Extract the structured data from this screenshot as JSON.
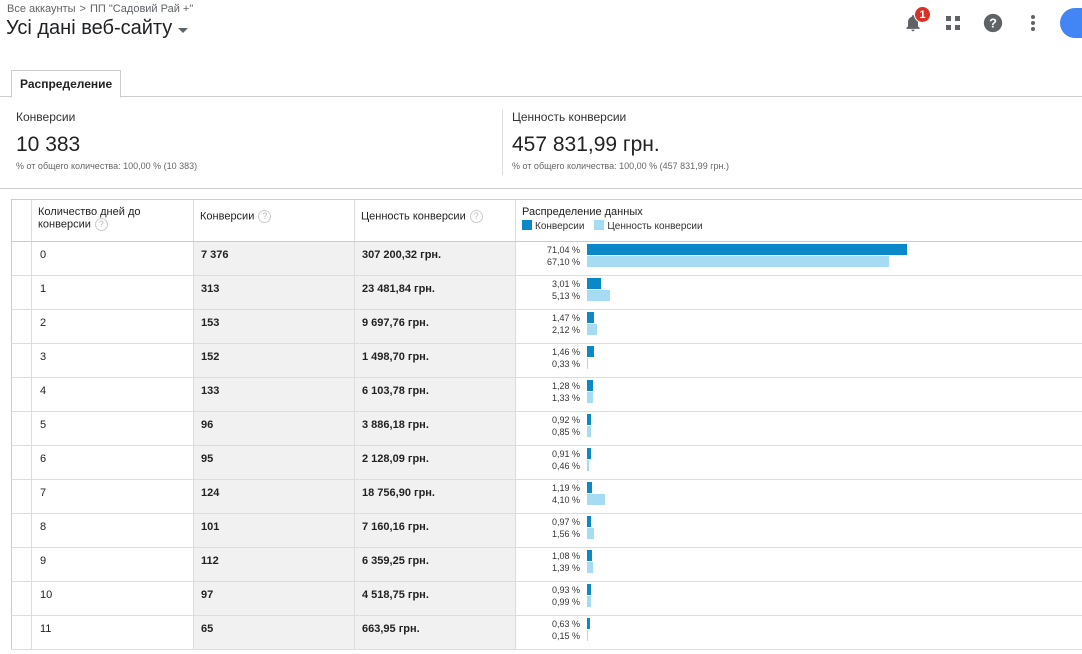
{
  "header": {
    "breadcrumb_accounts": "Все аккаунты",
    "breadcrumb_separator": ">",
    "breadcrumb_account": "ПП \"Садовий Рай +\"",
    "view_title": "Усі дані веб-сайту",
    "notification_count": "1"
  },
  "tabs": [
    {
      "label": "Распределение"
    }
  ],
  "scorecards": {
    "conversions": {
      "label": "Конверсии",
      "value": "10 383",
      "sub": "% от общего количества: 100,00 % (10 383)"
    },
    "value": {
      "label": "Ценность конверсии",
      "value": "457 831,99 грн.",
      "sub": "% от общего количества: 100,00 % (457 831,99 грн.)"
    }
  },
  "table": {
    "headers": {
      "days": "Количество дней до конверсии",
      "conversions": "Конверсии",
      "value": "Ценность конверсии",
      "distribution": "Распределение данных"
    },
    "legend": {
      "conversions": "Конверсии",
      "value": "Ценность конверсии"
    },
    "colors": {
      "conversions": "#0a88c8",
      "value": "#a6dcf3"
    },
    "rows": [
      {
        "days": "0",
        "conversions": "7 376",
        "value": "307 200,32 грн.",
        "conv_pct": "71,04 %",
        "value_pct": "67,10 %",
        "conv_share": 71.04,
        "value_share": 67.1
      },
      {
        "days": "1",
        "conversions": "313",
        "value": "23 481,84 грн.",
        "conv_pct": "3,01 %",
        "value_pct": "5,13 %",
        "conv_share": 3.01,
        "value_share": 5.13
      },
      {
        "days": "2",
        "conversions": "153",
        "value": "9 697,76 грн.",
        "conv_pct": "1,47 %",
        "value_pct": "2,12 %",
        "conv_share": 1.47,
        "value_share": 2.12
      },
      {
        "days": "3",
        "conversions": "152",
        "value": "1 498,70 грн.",
        "conv_pct": "1,46 %",
        "value_pct": "0,33 %",
        "conv_share": 1.46,
        "value_share": 0.33
      },
      {
        "days": "4",
        "conversions": "133",
        "value": "6 103,78 грн.",
        "conv_pct": "1,28 %",
        "value_pct": "1,33 %",
        "conv_share": 1.28,
        "value_share": 1.33
      },
      {
        "days": "5",
        "conversions": "96",
        "value": "3 886,18 грн.",
        "conv_pct": "0,92 %",
        "value_pct": "0,85 %",
        "conv_share": 0.92,
        "value_share": 0.85
      },
      {
        "days": "6",
        "conversions": "95",
        "value": "2 128,09 грн.",
        "conv_pct": "0,91 %",
        "value_pct": "0,46 %",
        "conv_share": 0.91,
        "value_share": 0.46
      },
      {
        "days": "7",
        "conversions": "124",
        "value": "18 756,90 грн.",
        "conv_pct": "1,19 %",
        "value_pct": "4,10 %",
        "conv_share": 1.19,
        "value_share": 4.1
      },
      {
        "days": "8",
        "conversions": "101",
        "value": "7 160,16 грн.",
        "conv_pct": "0,97 %",
        "value_pct": "1,56 %",
        "conv_share": 0.97,
        "value_share": 1.56
      },
      {
        "days": "9",
        "conversions": "112",
        "value": "6 359,25 грн.",
        "conv_pct": "1,08 %",
        "value_pct": "1,39 %",
        "conv_share": 1.08,
        "value_share": 1.39
      },
      {
        "days": "10",
        "conversions": "97",
        "value": "4 518,75 грн.",
        "conv_pct": "0,93 %",
        "value_pct": "0,99 %",
        "conv_share": 0.93,
        "value_share": 0.99
      },
      {
        "days": "11",
        "conversions": "65",
        "value": "663,95 грн.",
        "conv_pct": "0,63 %",
        "value_pct": "0,15 %",
        "conv_share": 0.63,
        "value_share": 0.15
      }
    ]
  }
}
